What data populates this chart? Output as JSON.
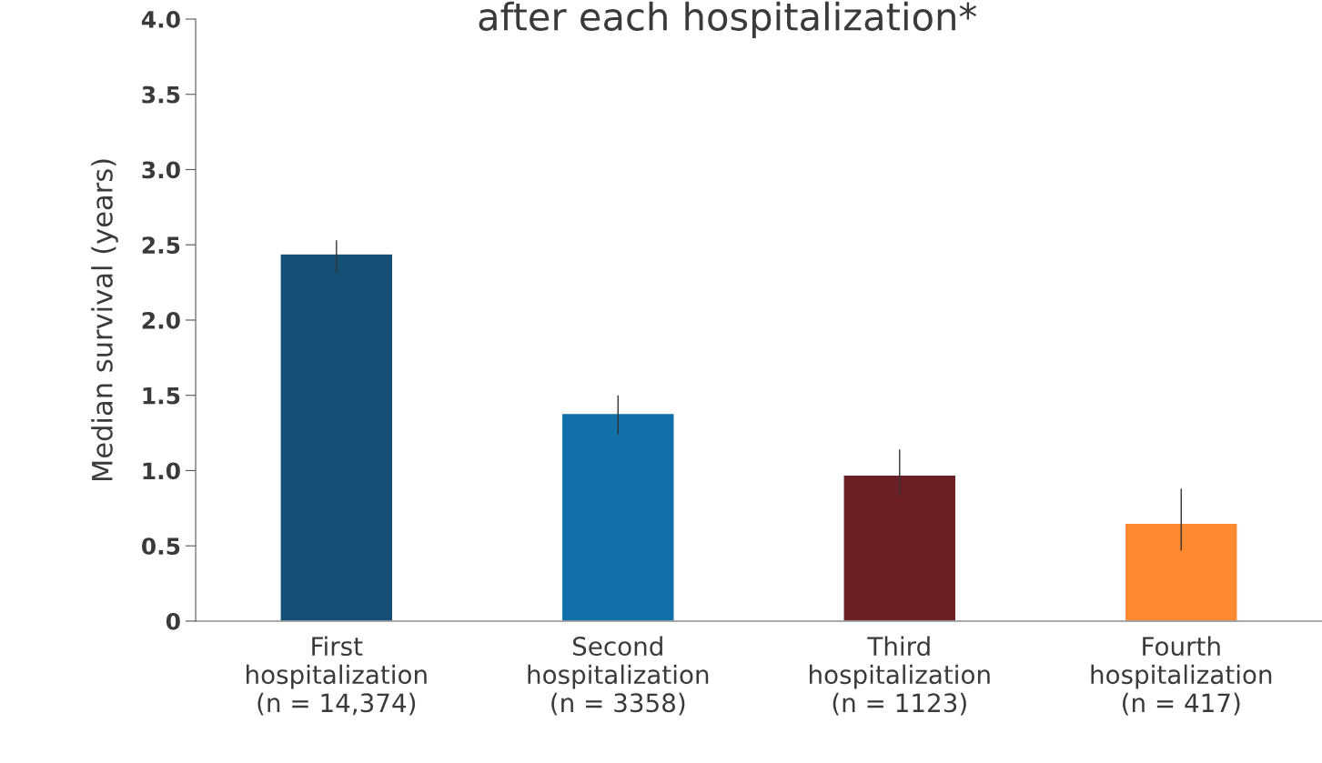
{
  "chart_data": {
    "type": "bar",
    "title": "after each hospitalization*",
    "ylabel": "Median survival (years)",
    "categories": [
      "First\nhospitalization\n(n = 14,374)",
      "Second\nhospitalization\n(n = 3358)",
      "Third\nhospitalization\n(n = 1123)",
      "Fourth\nhospitalization\n(n = 417)"
    ],
    "values": [
      2.44,
      1.38,
      0.97,
      0.65
    ],
    "colors": [
      "#154f75",
      "#1170a9",
      "#6e1f25",
      "#fd8a30"
    ],
    "errors": [
      [
        2.31,
        2.53
      ],
      [
        1.24,
        1.5
      ],
      [
        0.83,
        1.14
      ],
      [
        0.47,
        0.88
      ]
    ],
    "ylim": [
      0,
      4.0
    ],
    "yticks": [
      {
        "value": 0,
        "label": "0"
      },
      {
        "value": 0.5,
        "label": "0.5"
      },
      {
        "value": 1.0,
        "label": "1.0"
      },
      {
        "value": 1.5,
        "label": "1.5"
      },
      {
        "value": 2.0,
        "label": "2.0"
      },
      {
        "value": 2.5,
        "label": "2.5"
      },
      {
        "value": 3.0,
        "label": "3.0"
      },
      {
        "value": 3.5,
        "label": "3.5"
      },
      {
        "value": 4.0,
        "label": "4.0"
      }
    ],
    "grid": false
  }
}
